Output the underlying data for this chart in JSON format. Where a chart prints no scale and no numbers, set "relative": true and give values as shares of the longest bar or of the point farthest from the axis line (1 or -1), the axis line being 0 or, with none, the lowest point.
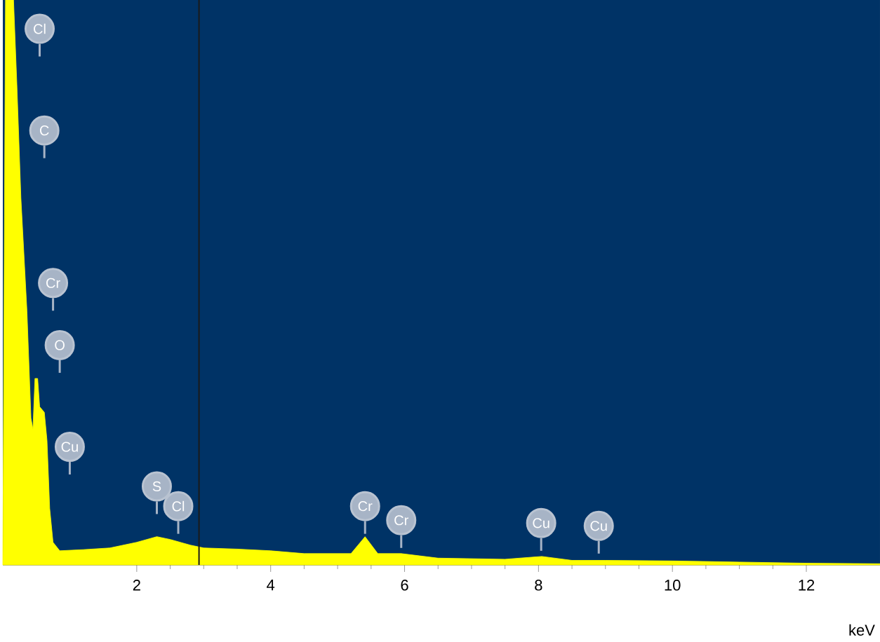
{
  "chart_data": {
    "type": "area",
    "relative": true,
    "xlabel": "keV",
    "color": "#ffff00",
    "x": [
      0.0,
      0.04,
      0.16,
      0.21,
      0.27,
      0.36,
      0.42,
      0.45,
      0.48,
      0.52,
      0.55,
      0.62,
      0.66,
      0.7,
      0.75,
      0.85,
      1.2,
      1.6,
      2.0,
      2.3,
      2.5,
      2.8,
      3.0,
      3.5,
      4.0,
      4.5,
      5.2,
      5.41,
      5.6,
      5.95,
      6.5,
      7.5,
      8.05,
      8.5,
      9.0,
      10.0,
      11.0,
      12.0,
      13.1
    ],
    "values": [
      0,
      1.0,
      1.0,
      0.85,
      0.65,
      0.45,
      0.26,
      0.24,
      0.33,
      0.33,
      0.28,
      0.27,
      0.22,
      0.1,
      0.04,
      0.025,
      0.027,
      0.03,
      0.04,
      0.05,
      0.045,
      0.035,
      0.03,
      0.028,
      0.025,
      0.02,
      0.02,
      0.05,
      0.02,
      0.02,
      0.012,
      0.01,
      0.015,
      0.008,
      0.008,
      0.007,
      0.005,
      0.003,
      0.002
    ],
    "xlim": [
      0,
      13.1
    ],
    "xticks": [
      2,
      4,
      6,
      8,
      10,
      12
    ],
    "grid": false,
    "ref_lines": [
      {
        "axis": "x",
        "value": 2.93,
        "color": "#1a1a1a"
      }
    ],
    "annotations": [
      "Cl",
      "C",
      "Cr",
      "O",
      "Cu",
      "S",
      "Cl",
      "Cr",
      "Cr",
      "Cu",
      "Cu"
    ]
  }
}
